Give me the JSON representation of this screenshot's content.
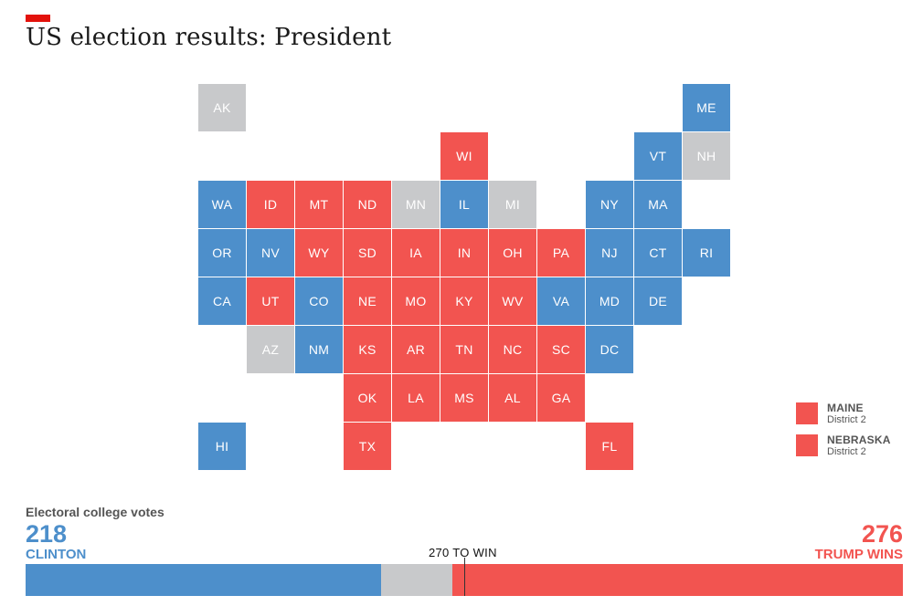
{
  "header": {
    "title": "US election results: President"
  },
  "colors": {
    "dem": "#4d8fcb",
    "rep": "#f25450",
    "undecided": "#c8c9cb",
    "accent": "#e3120b"
  },
  "states": [
    {
      "abbr": "AK",
      "status": "undecided",
      "col": 0,
      "row": 0
    },
    {
      "abbr": "ME",
      "status": "dem",
      "col": 10,
      "row": 0
    },
    {
      "abbr": "WI",
      "status": "rep",
      "col": 5,
      "row": 1
    },
    {
      "abbr": "VT",
      "status": "dem",
      "col": 9,
      "row": 1
    },
    {
      "abbr": "NH",
      "status": "undecided",
      "col": 10,
      "row": 1
    },
    {
      "abbr": "WA",
      "status": "dem",
      "col": 0,
      "row": 2
    },
    {
      "abbr": "ID",
      "status": "rep",
      "col": 1,
      "row": 2
    },
    {
      "abbr": "MT",
      "status": "rep",
      "col": 2,
      "row": 2
    },
    {
      "abbr": "ND",
      "status": "rep",
      "col": 3,
      "row": 2
    },
    {
      "abbr": "MN",
      "status": "undecided",
      "col": 4,
      "row": 2
    },
    {
      "abbr": "IL",
      "status": "dem",
      "col": 5,
      "row": 2
    },
    {
      "abbr": "MI",
      "status": "undecided",
      "col": 6,
      "row": 2
    },
    {
      "abbr": "NY",
      "status": "dem",
      "col": 8,
      "row": 2
    },
    {
      "abbr": "MA",
      "status": "dem",
      "col": 9,
      "row": 2
    },
    {
      "abbr": "OR",
      "status": "dem",
      "col": 0,
      "row": 3
    },
    {
      "abbr": "NV",
      "status": "dem",
      "col": 1,
      "row": 3
    },
    {
      "abbr": "WY",
      "status": "rep",
      "col": 2,
      "row": 3
    },
    {
      "abbr": "SD",
      "status": "rep",
      "col": 3,
      "row": 3
    },
    {
      "abbr": "IA",
      "status": "rep",
      "col": 4,
      "row": 3
    },
    {
      "abbr": "IN",
      "status": "rep",
      "col": 5,
      "row": 3
    },
    {
      "abbr": "OH",
      "status": "rep",
      "col": 6,
      "row": 3
    },
    {
      "abbr": "PA",
      "status": "rep",
      "col": 7,
      "row": 3
    },
    {
      "abbr": "NJ",
      "status": "dem",
      "col": 8,
      "row": 3
    },
    {
      "abbr": "CT",
      "status": "dem",
      "col": 9,
      "row": 3
    },
    {
      "abbr": "RI",
      "status": "dem",
      "col": 10,
      "row": 3
    },
    {
      "abbr": "CA",
      "status": "dem",
      "col": 0,
      "row": 4
    },
    {
      "abbr": "UT",
      "status": "rep",
      "col": 1,
      "row": 4
    },
    {
      "abbr": "CO",
      "status": "dem",
      "col": 2,
      "row": 4
    },
    {
      "abbr": "NE",
      "status": "rep",
      "col": 3,
      "row": 4
    },
    {
      "abbr": "MO",
      "status": "rep",
      "col": 4,
      "row": 4
    },
    {
      "abbr": "KY",
      "status": "rep",
      "col": 5,
      "row": 4
    },
    {
      "abbr": "WV",
      "status": "rep",
      "col": 6,
      "row": 4
    },
    {
      "abbr": "VA",
      "status": "dem",
      "col": 7,
      "row": 4
    },
    {
      "abbr": "MD",
      "status": "dem",
      "col": 8,
      "row": 4
    },
    {
      "abbr": "DE",
      "status": "dem",
      "col": 9,
      "row": 4
    },
    {
      "abbr": "AZ",
      "status": "undecided",
      "col": 1,
      "row": 5
    },
    {
      "abbr": "NM",
      "status": "dem",
      "col": 2,
      "row": 5
    },
    {
      "abbr": "KS",
      "status": "rep",
      "col": 3,
      "row": 5
    },
    {
      "abbr": "AR",
      "status": "rep",
      "col": 4,
      "row": 5
    },
    {
      "abbr": "TN",
      "status": "rep",
      "col": 5,
      "row": 5
    },
    {
      "abbr": "NC",
      "status": "rep",
      "col": 6,
      "row": 5
    },
    {
      "abbr": "SC",
      "status": "rep",
      "col": 7,
      "row": 5
    },
    {
      "abbr": "DC",
      "status": "dem",
      "col": 8,
      "row": 5
    },
    {
      "abbr": "OK",
      "status": "rep",
      "col": 3,
      "row": 6
    },
    {
      "abbr": "LA",
      "status": "rep",
      "col": 4,
      "row": 6
    },
    {
      "abbr": "MS",
      "status": "rep",
      "col": 5,
      "row": 6
    },
    {
      "abbr": "AL",
      "status": "rep",
      "col": 6,
      "row": 6
    },
    {
      "abbr": "GA",
      "status": "rep",
      "col": 7,
      "row": 6
    },
    {
      "abbr": "HI",
      "status": "dem",
      "col": 0,
      "row": 7
    },
    {
      "abbr": "TX",
      "status": "rep",
      "col": 3,
      "row": 7
    },
    {
      "abbr": "FL",
      "status": "rep",
      "col": 8,
      "row": 7
    }
  ],
  "legend": [
    {
      "name": "MAINE",
      "sub": "District 2",
      "status": "rep"
    },
    {
      "name": "NEBRASKA",
      "sub": "District 2",
      "status": "rep"
    }
  ],
  "electoral": {
    "label": "Electoral college votes",
    "clinton_votes": "218",
    "clinton_label": "CLINTON",
    "trump_votes": "276",
    "trump_label": "TRUMP WINS",
    "to_win_label": "270 TO WIN",
    "total": 538,
    "clinton_count": 218,
    "undecided_count": 44,
    "trump_count": 276
  }
}
